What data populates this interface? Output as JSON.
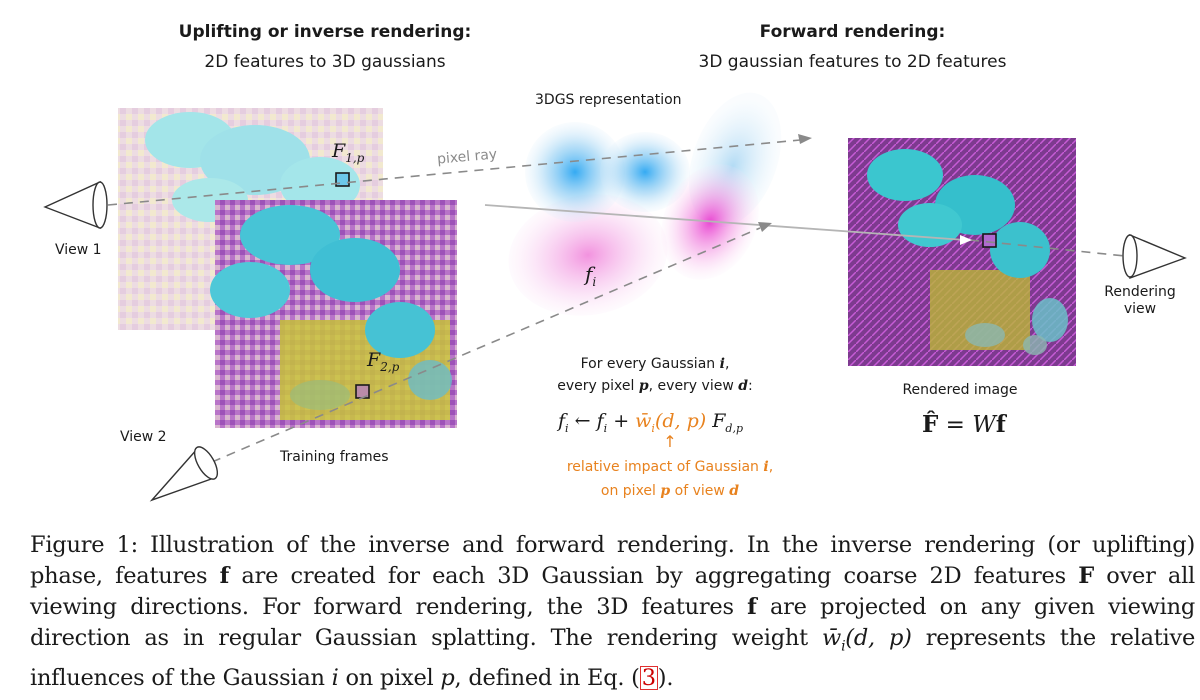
{
  "headers": {
    "inverse_title": "Uplifting or inverse rendering:",
    "inverse_subtitle": "2D features to 3D gaussians",
    "forward_title": "Forward rendering:",
    "forward_subtitle": "3D gaussian features to 2D features"
  },
  "labels": {
    "representation": "3DGS representation",
    "pixel_ray": "pixel ray",
    "view1": "View 1",
    "view2": "View 2",
    "training_frames": "Training frames",
    "rendering_view_1": "Rendering",
    "rendering_view_2": "view",
    "rendered_image": "Rendered image",
    "f1p_main": "F",
    "f1p_sub": "1,p",
    "f2p_main": "F",
    "f2p_sub": "2,p",
    "fi_main": "f",
    "fi_sub": "i"
  },
  "equations": {
    "for_every_1": "For every Gaussian ",
    "for_every_1_var": "i",
    "for_every_2a": "every pixel ",
    "for_every_2_var_p": "p",
    "for_every_2b": ", every view ",
    "for_every_2_var_d": "d",
    "for_every_2c": ":",
    "update_lhs": "f",
    "update_lhs_sub": "i",
    "update_arrow": " ← ",
    "update_rhs_f": "f",
    "update_rhs_sub": "i",
    "update_plus": " + ",
    "update_weight": "w̄",
    "update_weight_sub": "i",
    "update_weight_args": "(d, p)",
    "update_F": " F",
    "update_F_sub": "d,p",
    "impact_arrow": "↑",
    "impact_1a": "relative impact of Gaussian ",
    "impact_1_var": "i",
    "impact_1b": ",",
    "impact_2a": "on pixel ",
    "impact_2_var_p": "p",
    "impact_2b": " of view ",
    "impact_2_var_d": "d",
    "render_eq_F": "F̂",
    "render_eq_eq": " = ",
    "render_eq_W": "W",
    "render_eq_f": "f"
  },
  "caption": {
    "p1": "Figure 1: Illustration of the inverse and forward rendering.  In the inverse rendering (or uplifting) phase, features ",
    "f1": "f",
    "p2": " are created for each 3D Gaussian by aggregating coarse 2D features ",
    "F1": "F",
    "p3": " over all viewing directions.  For forward rendering, the 3D features ",
    "f2": "f",
    "p4": " are projected on any given viewing direction as in regular Gaussian splatting.  The rendering weight ",
    "w": "w̄",
    "w_sub": "i",
    "w_args": "(d, p)",
    "p5": " represents the relative influences of the Gaussian ",
    "i": "i",
    "p6": " on pixel ",
    "p": "p",
    "p7": ", defined in Eq. (",
    "ref": "3",
    "p8": ")."
  },
  "colors": {
    "accent_orange": "#e8821e",
    "gaussian_blue": "#4aa8e8",
    "gaussian_pink": "#e85fc8",
    "ray_gray": "#8a8a8a"
  }
}
